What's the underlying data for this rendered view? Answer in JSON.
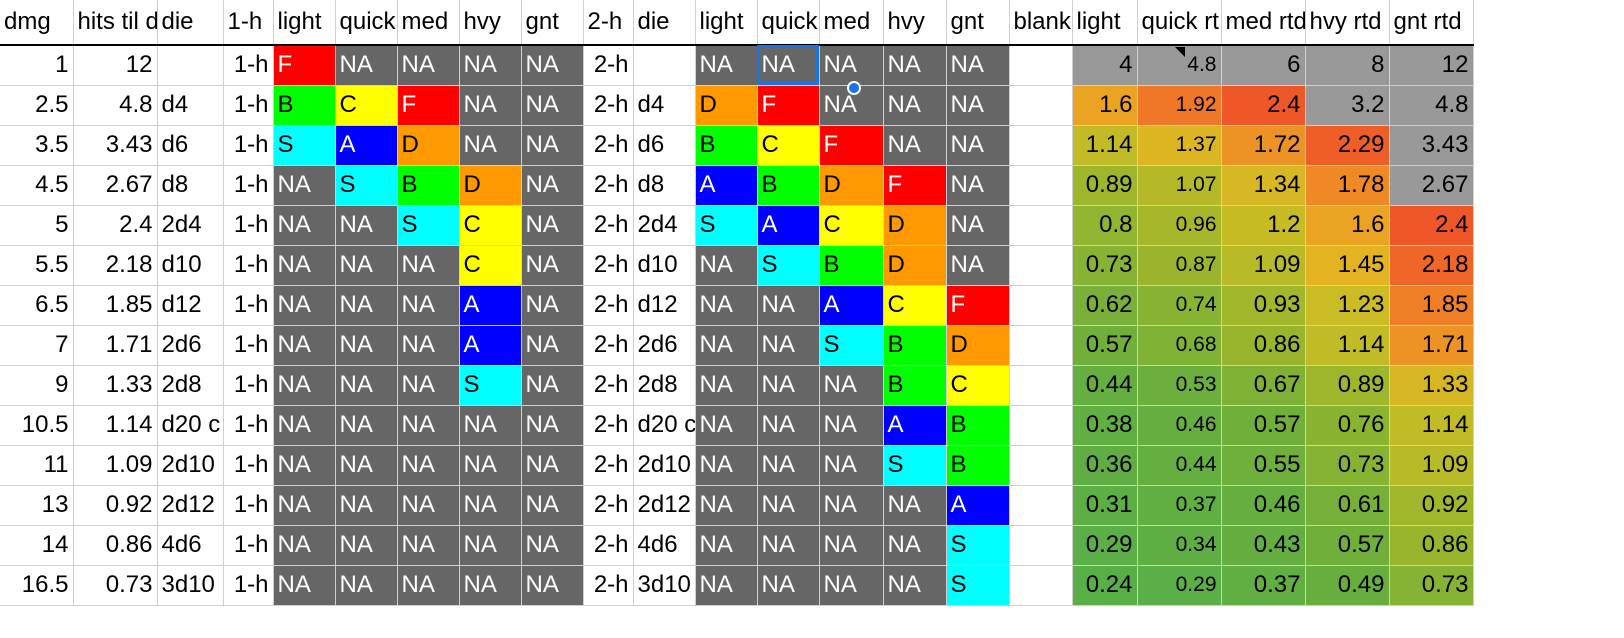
{
  "colors": {
    "red": "#ff0000",
    "yellow": "#ffff00",
    "orange": "#ff9900",
    "green": "#00ff00",
    "cyan": "#00ffff",
    "blue": "#0000ff",
    "dark": "#666666",
    "grey": "#999999",
    "selection": "#1a73e8"
  },
  "columns": {
    "dmg": "dmg",
    "hits": "hits til d",
    "die1": "die",
    "oneh": "1-h",
    "light1": "light",
    "quick1": "quick",
    "med1": "med",
    "hvy1": "hvy",
    "gnt1": "gnt",
    "twoh": "2-h",
    "die2": "die",
    "light2": "light",
    "quick2": "quick",
    "med2": "med",
    "hvy2": "hvy",
    "gnt2": "gnt",
    "blank": "blank",
    "lightr": "light",
    "quickr": "quick rt",
    "medr": "med rtd",
    "hvyr": "hvy rtd",
    "gntr": "gnt rtd"
  },
  "rows": [
    {
      "dmg": "1",
      "hits": "12",
      "die": "",
      "h1": "1-h",
      "g1": [
        "F",
        "NA",
        "NA",
        "NA",
        "NA"
      ],
      "h2": "2-h",
      "die2": "",
      "g2": [
        "NA",
        "NA",
        "NA",
        "NA",
        "NA"
      ],
      "rtd": [
        "4",
        "4.8",
        "6",
        "8",
        "12"
      ]
    },
    {
      "dmg": "2.5",
      "hits": "4.8",
      "die": "d4",
      "h1": "1-h",
      "g1": [
        "B",
        "C",
        "F",
        "NA",
        "NA"
      ],
      "h2": "2-h",
      "die2": "d4",
      "g2": [
        "D",
        "F",
        "NA",
        "NA",
        "NA"
      ],
      "rtd": [
        "1.6",
        "1.92",
        "2.4",
        "3.2",
        "4.8"
      ]
    },
    {
      "dmg": "3.5",
      "hits": "3.43",
      "die": "d6",
      "h1": "1-h",
      "g1": [
        "S",
        "A",
        "D",
        "NA",
        "NA"
      ],
      "h2": "2-h",
      "die2": "d6",
      "g2": [
        "B",
        "C",
        "F",
        "NA",
        "NA"
      ],
      "rtd": [
        "1.14",
        "1.37",
        "1.72",
        "2.29",
        "3.43"
      ]
    },
    {
      "dmg": "4.5",
      "hits": "2.67",
      "die": "d8",
      "h1": "1-h",
      "g1": [
        "NA",
        "S",
        "B",
        "D",
        "NA"
      ],
      "h2": "2-h",
      "die2": "d8",
      "g2": [
        "A",
        "B",
        "D",
        "F",
        "NA"
      ],
      "rtd": [
        "0.89",
        "1.07",
        "1.34",
        "1.78",
        "2.67"
      ]
    },
    {
      "dmg": "5",
      "hits": "2.4",
      "die": "2d4",
      "h1": "1-h",
      "g1": [
        "NA",
        "NA",
        "S",
        "C",
        "NA"
      ],
      "h2": "2-h",
      "die2": "2d4",
      "g2": [
        "S",
        "A",
        "C",
        "D",
        "NA"
      ],
      "rtd": [
        "0.8",
        "0.96",
        "1.2",
        "1.6",
        "2.4"
      ]
    },
    {
      "dmg": "5.5",
      "hits": "2.18",
      "die": "d10",
      "h1": "1-h",
      "g1": [
        "NA",
        "NA",
        "NA",
        "C",
        "NA"
      ],
      "h2": "2-h",
      "die2": "d10",
      "g2": [
        "NA",
        "S",
        "B",
        "D",
        "NA"
      ],
      "rtd": [
        "0.73",
        "0.87",
        "1.09",
        "1.45",
        "2.18"
      ]
    },
    {
      "dmg": "6.5",
      "hits": "1.85",
      "die": "d12",
      "h1": "1-h",
      "g1": [
        "NA",
        "NA",
        "NA",
        "A",
        "NA"
      ],
      "h2": "2-h",
      "die2": "d12",
      "g2": [
        "NA",
        "NA",
        "A",
        "C",
        "F"
      ],
      "rtd": [
        "0.62",
        "0.74",
        "0.93",
        "1.23",
        "1.85"
      ]
    },
    {
      "dmg": "7",
      "hits": "1.71",
      "die": "2d6",
      "h1": "1-h",
      "g1": [
        "NA",
        "NA",
        "NA",
        "A",
        "NA"
      ],
      "h2": "2-h",
      "die2": "2d6",
      "g2": [
        "NA",
        "NA",
        "S",
        "B",
        "D"
      ],
      "rtd": [
        "0.57",
        "0.68",
        "0.86",
        "1.14",
        "1.71"
      ]
    },
    {
      "dmg": "9",
      "hits": "1.33",
      "die": "2d8",
      "h1": "1-h",
      "g1": [
        "NA",
        "NA",
        "NA",
        "S",
        "NA"
      ],
      "h2": "2-h",
      "die2": "2d8",
      "g2": [
        "NA",
        "NA",
        "NA",
        "B",
        "C"
      ],
      "rtd": [
        "0.44",
        "0.53",
        "0.67",
        "0.89",
        "1.33"
      ]
    },
    {
      "dmg": "10.5",
      "hits": "1.14",
      "die": "d20 c",
      "h1": "1-h",
      "g1": [
        "NA",
        "NA",
        "NA",
        "NA",
        "NA"
      ],
      "h2": "2-h",
      "die2": "d20 c",
      "g2": [
        "NA",
        "NA",
        "NA",
        "A",
        "B"
      ],
      "rtd": [
        "0.38",
        "0.46",
        "0.57",
        "0.76",
        "1.14"
      ]
    },
    {
      "dmg": "11",
      "hits": "1.09",
      "die": "2d10",
      "h1": "1-h",
      "g1": [
        "NA",
        "NA",
        "NA",
        "NA",
        "NA"
      ],
      "h2": "2-h",
      "die2": "2d10",
      "g2": [
        "NA",
        "NA",
        "NA",
        "S",
        "B"
      ],
      "rtd": [
        "0.36",
        "0.44",
        "0.55",
        "0.73",
        "1.09"
      ]
    },
    {
      "dmg": "13",
      "hits": "0.92",
      "die": "2d12",
      "h1": "1-h",
      "g1": [
        "NA",
        "NA",
        "NA",
        "NA",
        "NA"
      ],
      "h2": "2-h",
      "die2": "2d12",
      "g2": [
        "NA",
        "NA",
        "NA",
        "NA",
        "A"
      ],
      "rtd": [
        "0.31",
        "0.37",
        "0.46",
        "0.61",
        "0.92"
      ]
    },
    {
      "dmg": "14",
      "hits": "0.86",
      "die": "4d6",
      "h1": "1-h",
      "g1": [
        "NA",
        "NA",
        "NA",
        "NA",
        "NA"
      ],
      "h2": "2-h",
      "die2": "4d6",
      "g2": [
        "NA",
        "NA",
        "NA",
        "NA",
        "S"
      ],
      "rtd": [
        "0.29",
        "0.34",
        "0.43",
        "0.57",
        "0.86"
      ]
    },
    {
      "dmg": "16.5",
      "hits": "0.73",
      "die": "3d10",
      "h1": "1-h",
      "g1": [
        "NA",
        "NA",
        "NA",
        "NA",
        "NA"
      ],
      "h2": "2-h",
      "die2": "3d10",
      "g2": [
        "NA",
        "NA",
        "NA",
        "NA",
        "S"
      ],
      "rtd": [
        "0.24",
        "0.29",
        "0.37",
        "0.49",
        "0.73"
      ]
    }
  ]
}
